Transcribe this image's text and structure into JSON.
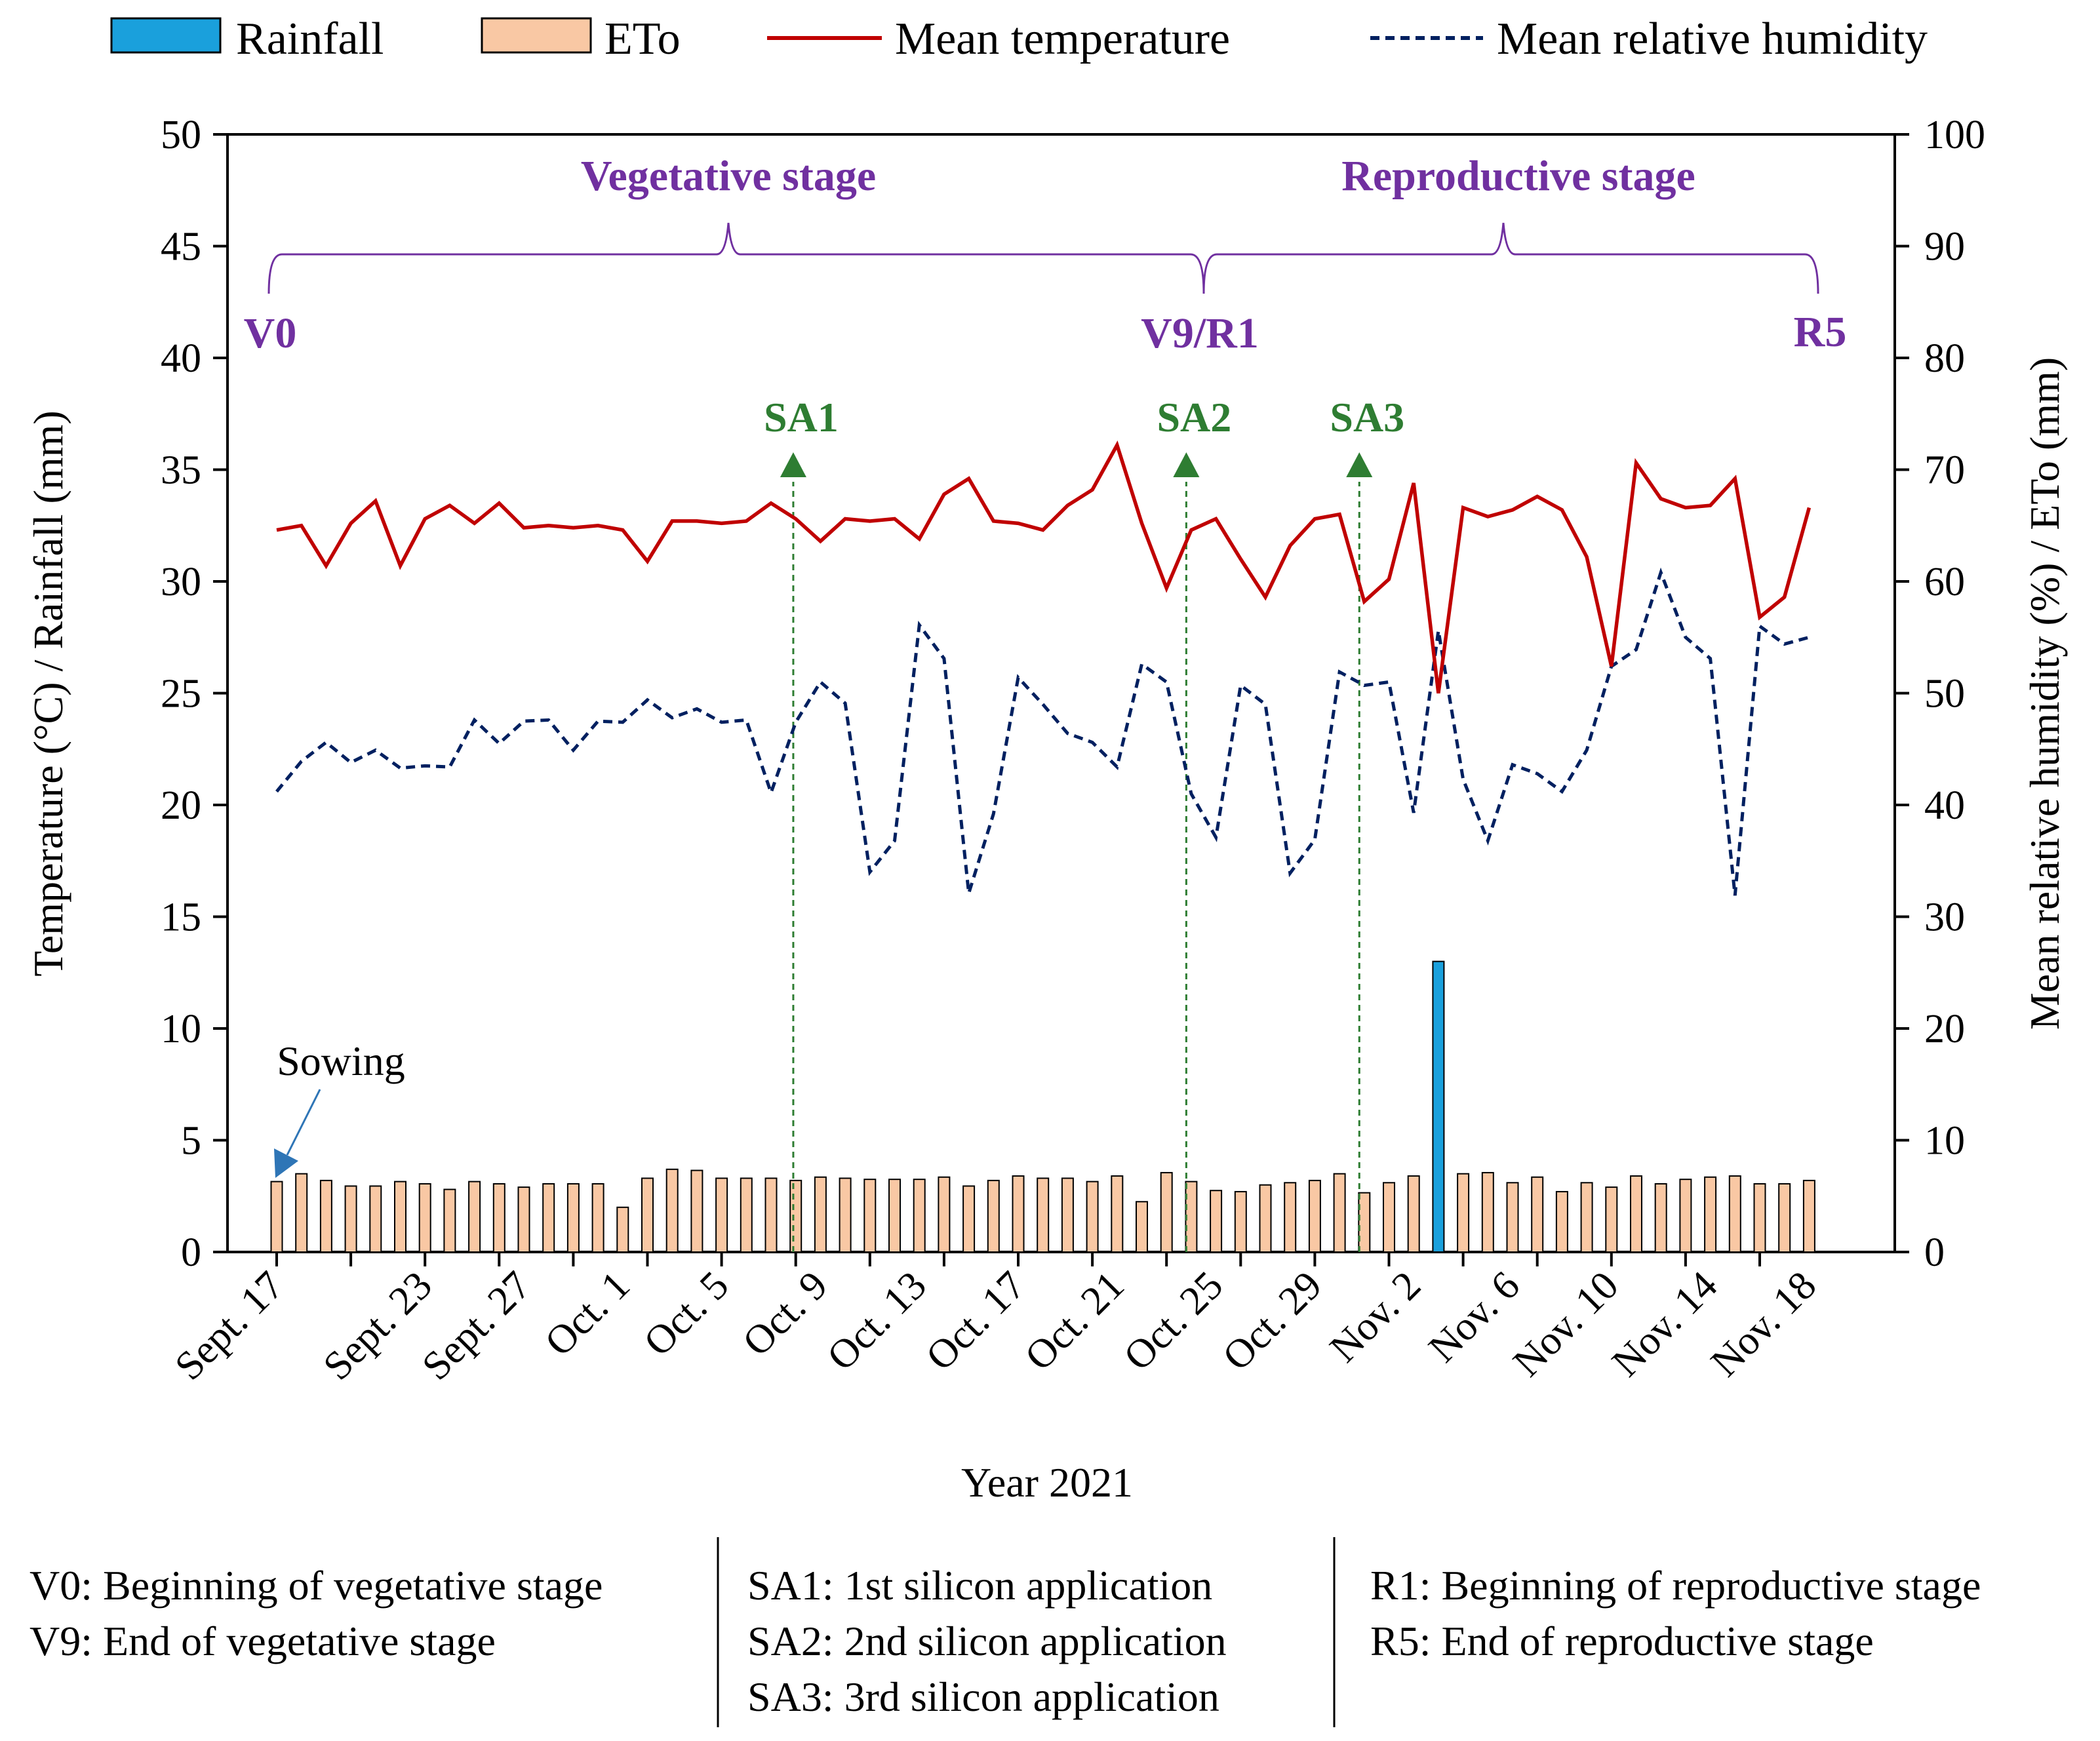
{
  "chart_data": {
    "type": "bar+line",
    "xlabel": "Year 2021",
    "ylabel_left": "Temperature (°C) / Rainfall (mm)",
    "ylabel_right": "Mean relative humidity (%) / ETo (mm)",
    "ylim_left": [
      0,
      50
    ],
    "ylim_right": [
      0,
      100
    ],
    "left_ticks": [
      "0",
      "5",
      "10",
      "15",
      "20",
      "25",
      "30",
      "35",
      "40",
      "45",
      "50"
    ],
    "right_ticks": [
      "0",
      "10",
      "20",
      "30",
      "40",
      "50",
      "60",
      "70",
      "80",
      "90",
      "100"
    ],
    "x_tick_labels": [
      "Sept. 17",
      "Sept. 23",
      "Sept. 27",
      "Oct. 1",
      "Oct. 5",
      "Oct. 9",
      "Oct. 13",
      "Oct. 17",
      "Oct. 21",
      "Oct. 25",
      "Oct. 29",
      "Nov. 2",
      "Nov. 6",
      "Nov. 10",
      "Nov. 14",
      "Nov. 18"
    ],
    "x_tick_day_index": [
      0,
      6,
      10,
      14,
      18,
      22,
      26,
      30,
      34,
      38,
      42,
      46,
      50,
      54,
      58,
      62
    ],
    "n_days": 63,
    "legend": {
      "rainfall": "Rainfall",
      "eto": "ETo",
      "temperature": "Mean temperature",
      "humidity": "Mean relative humidity"
    },
    "colors": {
      "rainfall": "#1aa0dc",
      "eto": "#f9c8a4",
      "temperature": "#c00000",
      "humidity": "#002060",
      "stage": "#7030a0",
      "sa": "#2e7d32",
      "sowing_arrow": "#2e75b6"
    },
    "series": [
      {
        "name": "Mean temperature",
        "axis": "left",
        "values": [
          32.3,
          32.5,
          30.7,
          32.6,
          33.6,
          30.7,
          32.8,
          33.4,
          32.6,
          33.5,
          32.4,
          32.5,
          32.4,
          32.5,
          32.3,
          30.9,
          32.7,
          32.7,
          32.6,
          32.7,
          33.5,
          32.8,
          31.8,
          32.8,
          32.7,
          32.8,
          31.9,
          33.9,
          34.6,
          32.7,
          32.6,
          32.3,
          33.4,
          34.1,
          36.1,
          32.6,
          29.7,
          32.3,
          32.8,
          31.0,
          29.3,
          31.6,
          32.8,
          33.0,
          29.1,
          30.1,
          34.4,
          25.0,
          33.3,
          32.9,
          33.2,
          33.8,
          33.2,
          31.1,
          26.2,
          35.3,
          33.7,
          33.3,
          33.4,
          34.6,
          28.4,
          29.3,
          33.3
        ]
      },
      {
        "name": "Mean relative humidity",
        "axis": "right",
        "values": [
          41.2,
          43.9,
          45.6,
          43.8,
          44.9,
          43.3,
          43.5,
          43.4,
          47.6,
          45.5,
          47.5,
          47.6,
          44.9,
          47.5,
          47.4,
          49.4,
          47.8,
          48.6,
          47.4,
          47.6,
          41.1,
          47.4,
          51.0,
          49.1,
          34.0,
          36.8,
          56.1,
          53.1,
          32.1,
          39.2,
          51.4,
          49.0,
          46.4,
          45.6,
          43.4,
          52.6,
          51.0,
          41.0,
          37.1,
          50.7,
          49.0,
          33.9,
          36.9,
          51.9,
          50.7,
          51.0,
          39.3,
          55.6,
          42.3,
          36.8,
          43.6,
          42.8,
          41.2,
          44.9,
          52.4,
          53.9,
          60.8,
          55.0,
          53.1,
          31.9,
          56.0,
          54.4,
          55.0
        ]
      },
      {
        "name": "ETo",
        "axis": "right",
        "values": [
          6.3,
          7.0,
          6.4,
          5.9,
          5.9,
          6.3,
          6.1,
          5.6,
          6.3,
          6.1,
          5.8,
          6.1,
          6.1,
          6.1,
          4.0,
          6.6,
          7.4,
          7.3,
          6.6,
          6.6,
          6.6,
          6.4,
          6.7,
          6.6,
          6.5,
          6.5,
          6.5,
          6.7,
          5.9,
          6.4,
          6.8,
          6.6,
          6.6,
          6.3,
          6.8,
          4.5,
          7.1,
          6.3,
          5.5,
          5.4,
          6.0,
          6.2,
          6.4,
          7.0,
          5.3,
          6.2,
          6.8,
          0,
          7.0,
          7.1,
          6.2,
          6.7,
          5.4,
          6.2,
          5.8,
          6.8,
          6.1,
          6.5,
          6.7,
          6.8,
          6.1,
          6.1,
          6.4
        ]
      },
      {
        "name": "Rainfall",
        "axis": "left",
        "values": [
          0,
          0,
          0,
          0,
          0,
          0,
          0,
          0,
          0,
          0,
          0,
          0,
          0,
          0,
          0,
          0,
          0,
          0,
          0,
          0,
          0,
          0,
          0,
          0,
          0,
          0,
          0,
          0,
          0,
          0,
          0,
          0,
          0,
          0,
          0,
          0,
          0,
          0,
          0,
          0,
          0,
          0,
          0,
          0,
          0,
          0,
          0,
          13.0,
          0,
          0,
          0,
          0,
          0,
          0,
          0,
          0,
          0,
          0,
          0,
          0,
          0,
          0,
          0
        ]
      }
    ],
    "stages": [
      {
        "label": "Vegetative stage",
        "start_day": 0,
        "end_day": 37.9
      },
      {
        "label": "Reproductive stage",
        "start_day": 37.9,
        "end_day": 62
      }
    ],
    "stage_markers": [
      {
        "label": "V0",
        "day": 0
      },
      {
        "label": "V9/R1",
        "day": 37.9
      },
      {
        "label": "R5",
        "day": 62
      }
    ],
    "silicon_applications": [
      {
        "label": "SA1",
        "day": 20.9
      },
      {
        "label": "SA2",
        "day": 36.8
      },
      {
        "label": "SA3",
        "day": 43.8
      }
    ],
    "sowing_label": "Sowing",
    "sowing_day": 0,
    "notes": [
      [
        "V0: Beginning of vegetative stage",
        "V9: End of vegetative stage"
      ],
      [
        "SA1: 1st silicon application",
        "SA2: 2nd silicon application",
        "SA3: 3rd silicon application"
      ],
      [
        "R1: Beginning of reproductive stage",
        "R5: End of reproductive stage"
      ]
    ]
  }
}
